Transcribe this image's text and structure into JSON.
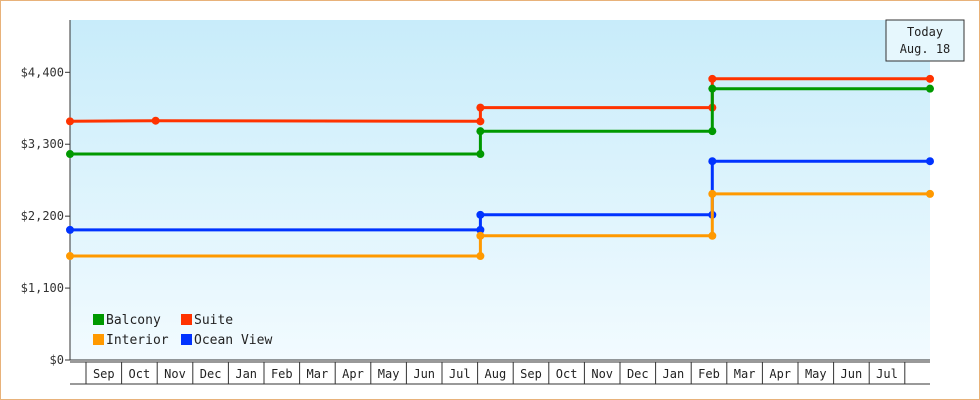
{
  "chart_data": {
    "type": "line",
    "step": true,
    "y_ticks": [
      "$0",
      "$1,100",
      "$2,200",
      "$3,300",
      "$4,400"
    ],
    "y_tick_values": [
      0,
      1100,
      2200,
      3300,
      4400
    ],
    "ylim": [
      0,
      5200
    ],
    "x_months": [
      "Sep",
      "Oct",
      "Nov",
      "Dec",
      "Jan",
      "Feb",
      "Mar",
      "Apr",
      "May",
      "Jun",
      "Jul",
      "Aug",
      "Sep",
      "Oct",
      "Nov",
      "Dec",
      "Jan",
      "Feb",
      "Mar",
      "Apr",
      "May",
      "Jun",
      "Jul"
    ],
    "x_range_months": [
      -0.5,
      23.6
    ],
    "today": {
      "line1": "Today",
      "line2": "Aug. 18",
      "month_pos": 23.6
    },
    "legend_position": "bottom-left",
    "grid": false,
    "series": [
      {
        "name": "Suite",
        "color": "#ff3300",
        "points": [
          [
            -0.5,
            3650
          ],
          [
            1.9,
            3660
          ],
          [
            11.0,
            3650
          ],
          [
            11.0,
            3860
          ],
          [
            17.5,
            3860
          ],
          [
            17.5,
            4300
          ],
          [
            23.6,
            4300
          ]
        ]
      },
      {
        "name": "Balcony",
        "color": "#009900",
        "points": [
          [
            -0.5,
            3150
          ],
          [
            11.0,
            3150
          ],
          [
            11.0,
            3500
          ],
          [
            17.5,
            3500
          ],
          [
            17.5,
            4150
          ],
          [
            23.6,
            4150
          ]
        ]
      },
      {
        "name": "Ocean View",
        "color": "#0033ff",
        "points": [
          [
            -0.5,
            1990
          ],
          [
            11.0,
            1990
          ],
          [
            11.0,
            2220
          ],
          [
            17.5,
            2220
          ],
          [
            17.5,
            3040
          ],
          [
            23.6,
            3040
          ]
        ]
      },
      {
        "name": "Interior",
        "color": "#ff9900",
        "points": [
          [
            -0.5,
            1590
          ],
          [
            11.0,
            1590
          ],
          [
            11.0,
            1900
          ],
          [
            17.5,
            1900
          ],
          [
            17.5,
            2540
          ],
          [
            23.6,
            2540
          ]
        ]
      }
    ],
    "legend_order": [
      "Balcony",
      "Suite",
      "Interior",
      "Ocean View"
    ]
  }
}
